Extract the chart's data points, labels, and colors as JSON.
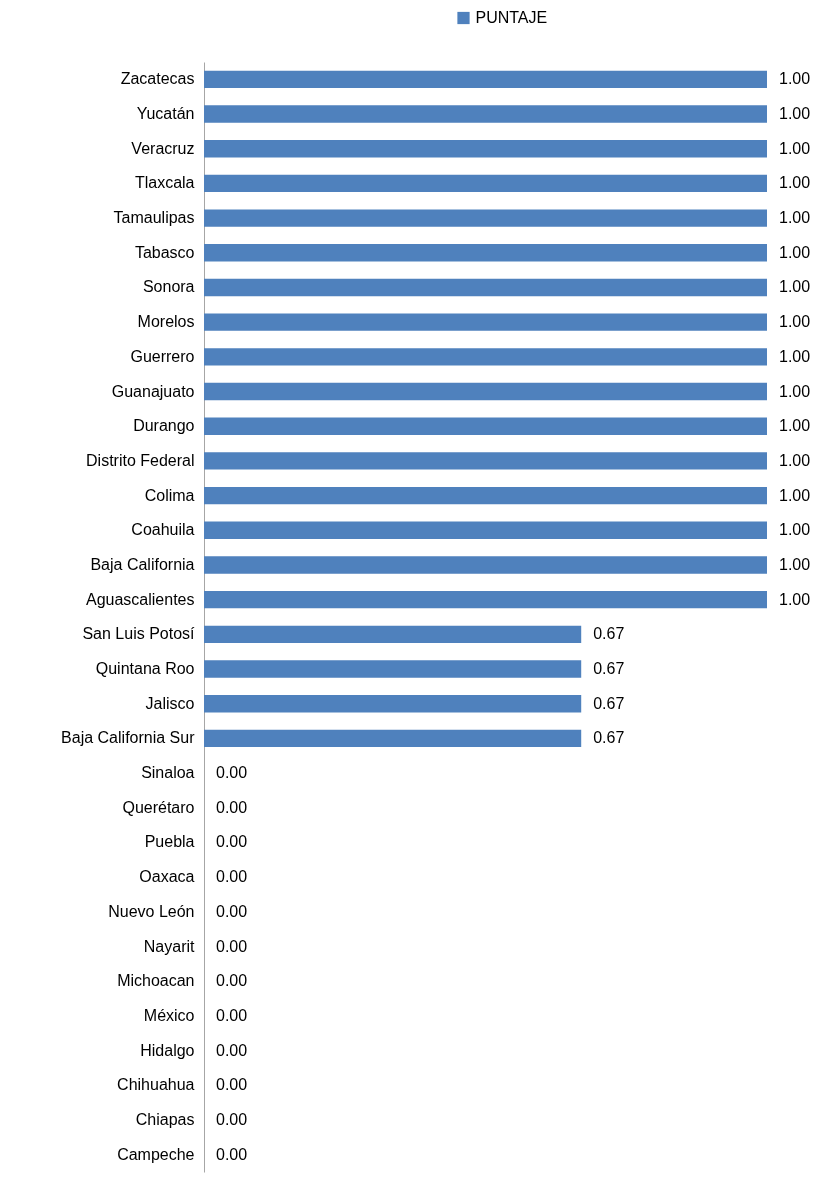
{
  "chart_data": {
    "type": "bar",
    "orientation": "horizontal",
    "legend": "top",
    "tick_labels": "y",
    "xlim": [
      0,
      1
    ],
    "categories": [
      "Zacatecas",
      "Yucatán",
      "Veracruz",
      "Tlaxcala",
      "Tamaulipas",
      "Tabasco",
      "Sonora",
      "Morelos",
      "Guerrero",
      "Guanajuato",
      "Durango",
      "Distrito Federal",
      "Colima",
      "Coahuila",
      "Baja California",
      "Aguascalientes",
      "San Luis Potosí",
      "Quintana Roo",
      "Jalisco",
      "Baja California Sur",
      "Sinaloa",
      "Querétaro",
      "Puebla",
      "Oaxaca",
      "Nuevo León",
      "Nayarit",
      "Michoacan",
      "México",
      "Hidalgo",
      "Chihuahua",
      "Chiapas",
      "Campeche"
    ],
    "series": [
      {
        "name": "PUNTAJE",
        "color": "#4f81bd",
        "values": [
          1,
          1,
          1,
          1,
          1,
          1,
          1,
          1,
          1,
          1,
          1,
          1,
          1,
          1,
          1,
          1,
          0.67,
          0.67,
          0.67,
          0.67,
          0,
          0,
          0,
          0,
          0,
          0,
          0,
          0,
          0,
          0,
          0,
          0
        ],
        "value_labels": [
          "1.00",
          "1.00",
          "1.00",
          "1.00",
          "1.00",
          "1.00",
          "1.00",
          "1.00",
          "1.00",
          "1.00",
          "1.00",
          "1.00",
          "1.00",
          "1.00",
          "1.00",
          "1.00",
          "0.67",
          "0.67",
          "0.67",
          "0.67",
          "0.00",
          "0.00",
          "0.00",
          "0.00",
          "0.00",
          "0.00",
          "0.00",
          "0.00",
          "0.00",
          "0.00",
          "0.00",
          "0.00"
        ]
      }
    ]
  }
}
